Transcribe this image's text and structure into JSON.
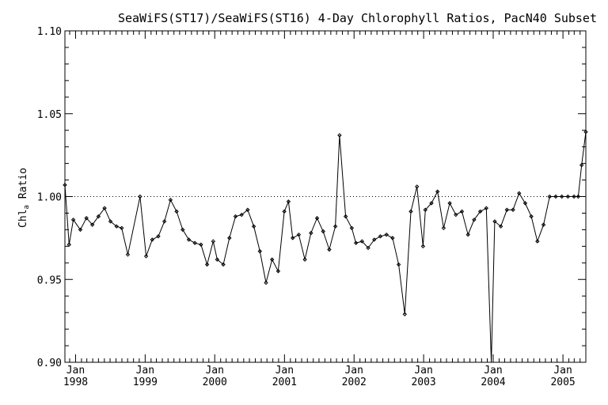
{
  "chart_data": {
    "type": "line",
    "title": "SeaWiFS(ST17)/SeaWiFS(ST16) 4-Day Chlorophyll Ratios, PacN40 Subset",
    "ylabel": "Chl",
    "ylabel_subscript": "a",
    "ylabel_suffix": " Ratio",
    "xlabel": "",
    "ylim": [
      0.9,
      1.1
    ],
    "xlim": [
      "1997-11-06",
      "2005-05-01"
    ],
    "yticks": [
      "0.90",
      "0.95",
      "1.00",
      "1.05",
      "1.10"
    ],
    "xticks": [
      {
        "top": "Jan",
        "bottom": "1998",
        "date": "1998-01-01"
      },
      {
        "top": "Jan",
        "bottom": "1999",
        "date": "1999-01-01"
      },
      {
        "top": "Jan",
        "bottom": "2000",
        "date": "2000-01-01"
      },
      {
        "top": "Jan",
        "bottom": "2001",
        "date": "2001-01-01"
      },
      {
        "top": "Jan",
        "bottom": "2002",
        "date": "2002-01-01"
      },
      {
        "top": "Jan",
        "bottom": "2003",
        "date": "2003-01-01"
      },
      {
        "top": "Jan",
        "bottom": "2004",
        "date": "2004-01-01"
      },
      {
        "top": "Jan",
        "bottom": "2005",
        "date": "2005-01-01"
      }
    ],
    "reference_line": {
      "y": 1.0,
      "style": "dotted"
    },
    "grid": false,
    "series": [
      {
        "points": [
          [
            "1997-11-06",
            1.007
          ],
          [
            "1997-11-28",
            0.971
          ],
          [
            "1997-12-20",
            0.986
          ],
          [
            "1998-01-26",
            0.98
          ],
          [
            "1998-02-27",
            0.987
          ],
          [
            "1998-03-30",
            0.983
          ],
          [
            "1998-05-01",
            0.988
          ],
          [
            "1998-06-02",
            0.993
          ],
          [
            "1998-07-03",
            0.985
          ],
          [
            "1998-08-04",
            0.982
          ],
          [
            "1998-08-31",
            0.981
          ],
          [
            "1998-10-02",
            0.965
          ],
          [
            "1998-12-05",
            1.0
          ],
          [
            "1999-01-06",
            0.964
          ],
          [
            "1999-02-07",
            0.974
          ],
          [
            "1999-03-11",
            0.976
          ],
          [
            "1999-04-12",
            0.985
          ],
          [
            "1999-05-14",
            0.998
          ],
          [
            "1999-06-15",
            0.991
          ],
          [
            "1999-07-17",
            0.98
          ],
          [
            "1999-08-18",
            0.974
          ],
          [
            "1999-09-19",
            0.972
          ],
          [
            "1999-10-21",
            0.971
          ],
          [
            "1999-11-22",
            0.959
          ],
          [
            "1999-12-24",
            0.973
          ],
          [
            "2000-01-14",
            0.962
          ],
          [
            "2000-02-15",
            0.959
          ],
          [
            "2000-03-18",
            0.975
          ],
          [
            "2000-04-19",
            0.988
          ],
          [
            "2000-05-21",
            0.989
          ],
          [
            "2000-06-22",
            0.992
          ],
          [
            "2000-07-24",
            0.982
          ],
          [
            "2000-08-25",
            0.967
          ],
          [
            "2000-09-26",
            0.948
          ],
          [
            "2000-10-28",
            0.962
          ],
          [
            "2000-11-29",
            0.955
          ],
          [
            "2000-12-31",
            0.991
          ],
          [
            "2001-01-22",
            0.997
          ],
          [
            "2001-02-13",
            0.975
          ],
          [
            "2001-03-17",
            0.977
          ],
          [
            "2001-04-18",
            0.962
          ],
          [
            "2001-05-20",
            0.978
          ],
          [
            "2001-06-21",
            0.987
          ],
          [
            "2001-07-23",
            0.979
          ],
          [
            "2001-08-24",
            0.968
          ],
          [
            "2001-09-25",
            0.982
          ],
          [
            "2001-10-17",
            1.037
          ],
          [
            "2001-11-18",
            0.988
          ],
          [
            "2001-12-20",
            0.981
          ],
          [
            "2002-01-11",
            0.972
          ],
          [
            "2002-02-12",
            0.973
          ],
          [
            "2002-03-16",
            0.969
          ],
          [
            "2002-04-17",
            0.974
          ],
          [
            "2002-05-19",
            0.976
          ],
          [
            "2002-06-20",
            0.977
          ],
          [
            "2002-07-22",
            0.975
          ],
          [
            "2002-08-23",
            0.959
          ],
          [
            "2002-09-24",
            0.929
          ],
          [
            "2002-10-26",
            0.991
          ],
          [
            "2002-11-27",
            1.006
          ],
          [
            "2002-12-29",
            0.97
          ],
          [
            "2003-01-10",
            0.992
          ],
          [
            "2003-02-11",
            0.996
          ],
          [
            "2003-03-15",
            1.003
          ],
          [
            "2003-04-16",
            0.981
          ],
          [
            "2003-05-18",
            0.996
          ],
          [
            "2003-06-19",
            0.989
          ],
          [
            "2003-07-21",
            0.991
          ],
          [
            "2003-08-22",
            0.977
          ],
          [
            "2003-09-23",
            0.986
          ],
          [
            "2003-10-25",
            0.991
          ],
          [
            "2003-11-26",
            0.993
          ],
          [
            "2003-12-22",
            0.895
          ],
          [
            "2004-01-09",
            0.985
          ],
          [
            "2004-02-10",
            0.982
          ],
          [
            "2004-03-13",
            0.992
          ],
          [
            "2004-04-14",
            0.992
          ],
          [
            "2004-05-16",
            1.002
          ],
          [
            "2004-06-17",
            0.996
          ],
          [
            "2004-07-19",
            0.988
          ],
          [
            "2004-08-20",
            0.973
          ],
          [
            "2004-09-21",
            0.983
          ],
          [
            "2004-10-23",
            1.0
          ],
          [
            "2004-11-24",
            1.0
          ],
          [
            "2004-12-26",
            1.0
          ],
          [
            "2005-01-27",
            1.0
          ],
          [
            "2005-02-28",
            1.0
          ],
          [
            "2005-03-22",
            1.0
          ],
          [
            "2005-04-09",
            1.019
          ],
          [
            "2005-05-01",
            1.039
          ]
        ]
      }
    ]
  }
}
